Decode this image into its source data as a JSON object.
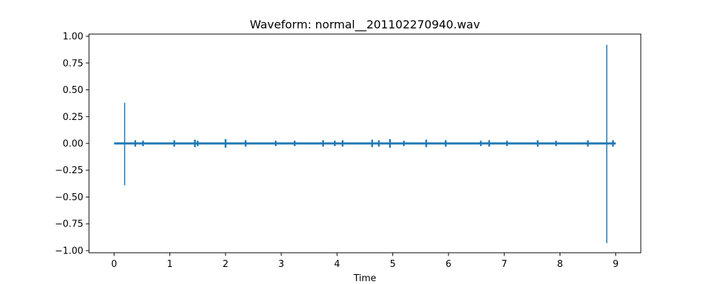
{
  "chart_data": {
    "type": "line",
    "title": "Waveform: normal__201102270940.wav",
    "xlabel": "Time",
    "ylabel": "",
    "xlim": [
      -0.45,
      9.45
    ],
    "ylim": [
      -1.02,
      1.02
    ],
    "x_ticks": [
      0,
      1,
      2,
      3,
      4,
      5,
      6,
      7,
      8,
      9
    ],
    "x_tick_labels": [
      "0",
      "1",
      "2",
      "3",
      "4",
      "5",
      "6",
      "7",
      "8",
      "9"
    ],
    "y_ticks": [
      1.0,
      0.75,
      0.5,
      0.25,
      0.0,
      -0.25,
      -0.5,
      -0.75,
      -1.0
    ],
    "y_tick_labels": [
      "1.00",
      "0.75",
      "0.50",
      "0.25",
      "0.00",
      "−0.25",
      "−0.50",
      "−0.75",
      "−1.00"
    ],
    "grid": false,
    "series": [
      {
        "name": "waveform",
        "color": "#1f77b4",
        "time_range": [
          0.0,
          9.0
        ],
        "baseline": 0.0,
        "baseline_noise": 0.008,
        "spikes": [
          {
            "t": 0.19,
            "max": 0.38,
            "min": -0.39
          },
          {
            "t": 0.38,
            "max": 0.02,
            "min": -0.02
          },
          {
            "t": 0.52,
            "max": 0.015,
            "min": -0.015
          },
          {
            "t": 1.08,
            "max": 0.02,
            "min": -0.02
          },
          {
            "t": 1.45,
            "max": 0.025,
            "min": -0.025
          },
          {
            "t": 1.5,
            "max": 0.015,
            "min": -0.015
          },
          {
            "t": 2.0,
            "max": 0.03,
            "min": -0.03
          },
          {
            "t": 2.36,
            "max": 0.02,
            "min": -0.02
          },
          {
            "t": 2.9,
            "max": 0.015,
            "min": -0.015
          },
          {
            "t": 3.24,
            "max": 0.015,
            "min": -0.015
          },
          {
            "t": 3.75,
            "max": 0.02,
            "min": -0.02
          },
          {
            "t": 3.96,
            "max": 0.015,
            "min": -0.015
          },
          {
            "t": 4.1,
            "max": 0.02,
            "min": -0.02
          },
          {
            "t": 4.63,
            "max": 0.025,
            "min": -0.025
          },
          {
            "t": 4.75,
            "max": 0.02,
            "min": -0.02
          },
          {
            "t": 4.95,
            "max": 0.03,
            "min": -0.03
          },
          {
            "t": 5.2,
            "max": 0.015,
            "min": -0.015
          },
          {
            "t": 5.6,
            "max": 0.025,
            "min": -0.025
          },
          {
            "t": 5.95,
            "max": 0.02,
            "min": -0.02
          },
          {
            "t": 6.58,
            "max": 0.015,
            "min": -0.015
          },
          {
            "t": 6.73,
            "max": 0.02,
            "min": -0.02
          },
          {
            "t": 7.05,
            "max": 0.015,
            "min": -0.015
          },
          {
            "t": 7.6,
            "max": 0.02,
            "min": -0.02
          },
          {
            "t": 7.93,
            "max": 0.015,
            "min": -0.015
          },
          {
            "t": 8.5,
            "max": 0.02,
            "min": -0.02
          },
          {
            "t": 8.84,
            "max": 0.92,
            "min": -0.93
          },
          {
            "t": 8.95,
            "max": 0.02,
            "min": -0.02
          }
        ]
      }
    ]
  }
}
